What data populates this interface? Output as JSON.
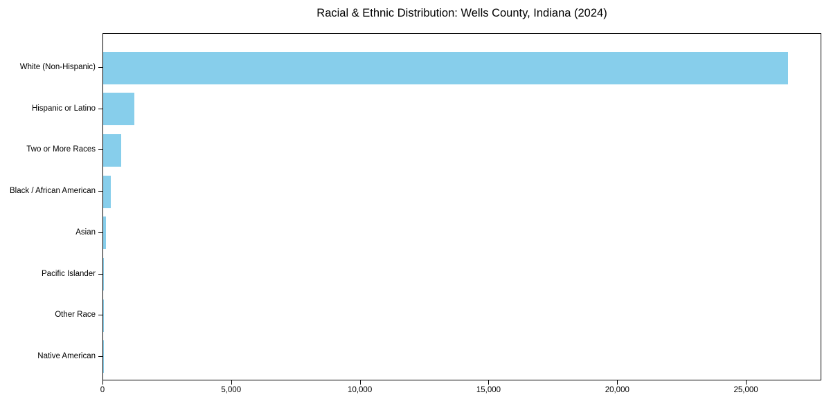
{
  "chart": {
    "bar_color": "#87CEEB",
    "axis_color": "#000000",
    "text_color": "#000000",
    "background_color": "#ffffff"
  },
  "chart_data": {
    "type": "bar",
    "orientation": "horizontal",
    "title": "Racial & Ethnic Distribution: Wells County, Indiana (2024)",
    "xlabel": "",
    "ylabel": "",
    "categories": [
      "White (Non-Hispanic)",
      "Hispanic or Latino",
      "Two or More Races",
      "Black / African American",
      "Asian",
      "Pacific Islander",
      "Other Race",
      "Native American"
    ],
    "values": [
      26600,
      1200,
      690,
      290,
      110,
      35,
      25,
      15
    ],
    "xlim": [
      0,
      27930
    ],
    "x_ticks": [
      0,
      5000,
      10000,
      15000,
      20000,
      25000
    ],
    "x_tick_labels": [
      "0",
      "5,000",
      "10,000",
      "15,000",
      "20,000",
      "25,000"
    ],
    "grid": false,
    "legend": false
  }
}
